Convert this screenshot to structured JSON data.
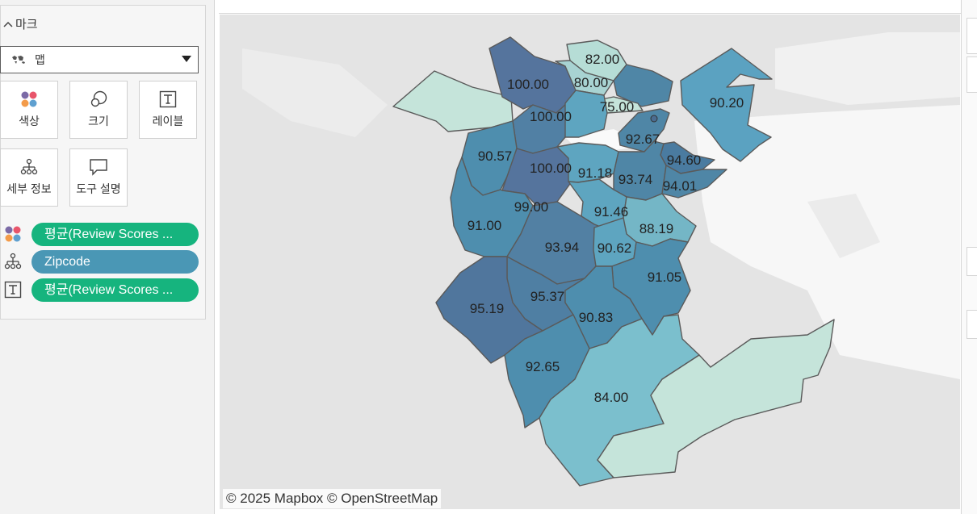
{
  "marks": {
    "title": "마크",
    "mark_type": "맵",
    "tiles": [
      {
        "label": "색상",
        "icon": "color-icon"
      },
      {
        "label": "크기",
        "icon": "size-icon"
      },
      {
        "label": "레이블",
        "icon": "label-icon"
      },
      {
        "label": "세부 정보",
        "icon": "detail-icon"
      },
      {
        "label": "도구 설명",
        "icon": "tooltip-icon"
      }
    ],
    "pills": [
      {
        "icon": "color-icon",
        "text": "평균(Review Scores ...",
        "color": "#16b47e"
      },
      {
        "icon": "detail-icon",
        "text": "Zipcode",
        "color": "#4a97b5"
      },
      {
        "icon": "label-icon",
        "text": "평균(Review Scores ...",
        "color": "#16b47e"
      }
    ]
  },
  "map": {
    "attribution": "© 2025 Mapbox © OpenStreetMap",
    "color_low": "#c5e4da",
    "color_high": "#4f6b94",
    "labels": [
      "82.00",
      "80.00",
      "100.00",
      "75.00",
      "100.00",
      "90.20",
      "92.67",
      "90.57",
      "94.60",
      "100.00",
      "91.18",
      "93.74",
      "94.01",
      "99.00",
      "91.46",
      "91.00",
      "88.19",
      "93.94",
      "90.62",
      "91.05",
      "95.37",
      "95.19",
      "90.83",
      "92.65",
      "84.00"
    ]
  }
}
